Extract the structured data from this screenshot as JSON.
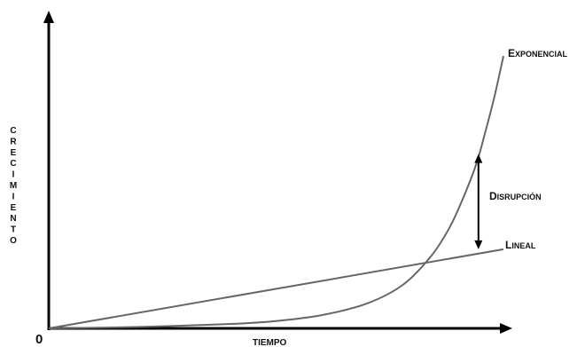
{
  "chart_data": {
    "type": "line",
    "title": "",
    "xlabel": "TIEMPO",
    "ylabel": "CRECIMIENTO",
    "origin_label": "0",
    "xlim": [
      0,
      1
    ],
    "ylim": [
      0,
      1
    ],
    "grid": false,
    "series": [
      {
        "name": "Exponencial",
        "color": "#666666",
        "x": [
          0,
          0.2,
          0.4,
          0.5,
          0.6,
          0.7,
          0.78,
          0.84,
          0.88,
          0.91,
          0.94,
          0.96,
          0.98,
          1.0
        ],
        "y": [
          0,
          0.005,
          0.015,
          0.025,
          0.045,
          0.085,
          0.15,
          0.245,
          0.34,
          0.44,
          0.56,
          0.67,
          0.79,
          0.93
        ]
      },
      {
        "name": "Lineal",
        "color": "#666666",
        "x": [
          0,
          1
        ],
        "y": [
          0,
          0.27
        ]
      }
    ],
    "annotations": [
      {
        "text": "Disrupción",
        "x": 0.945,
        "y_from": 0.27,
        "y_to": 0.595
      }
    ]
  }
}
